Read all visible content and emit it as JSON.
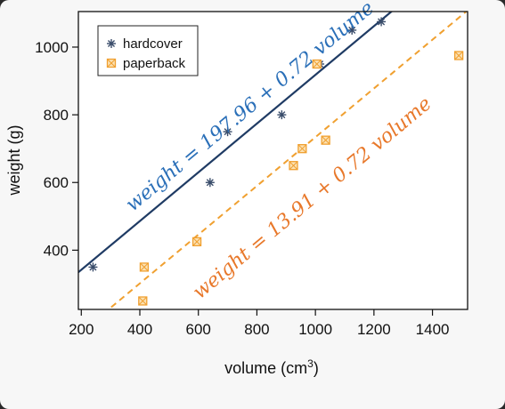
{
  "chart_data": {
    "type": "scatter",
    "xlabel_main": "volume (cm",
    "xlabel_sup": "3",
    "xlabel_end": ")",
    "ylabel": "weight (g)",
    "xlim": [
      190,
      1520
    ],
    "ylim": [
      225,
      1105
    ],
    "x_ticks": [
      200,
      400,
      600,
      800,
      1000,
      1200,
      1400
    ],
    "y_ticks": [
      400,
      600,
      800,
      1000
    ],
    "grid": false,
    "legend_position": "top-left",
    "series": [
      {
        "name": "hardcover",
        "marker": "asterisk",
        "color": "#3a4d6b",
        "points": [
          [
            240,
            350
          ],
          [
            640,
            600
          ],
          [
            700,
            750
          ],
          [
            885,
            800
          ],
          [
            1015,
            950
          ],
          [
            1125,
            1050
          ],
          [
            1225,
            1075
          ]
        ]
      },
      {
        "name": "paperback",
        "marker": "square-x",
        "color": "#f0a030",
        "points": [
          [
            410,
            250
          ],
          [
            415,
            350
          ],
          [
            595,
            425
          ],
          [
            925,
            650
          ],
          [
            955,
            700
          ],
          [
            1005,
            950
          ],
          [
            1035,
            725
          ],
          [
            1490,
            975
          ]
        ]
      }
    ],
    "fit_lines": [
      {
        "intercept": 197.96,
        "slope": 0.72,
        "color": "#1f3b64",
        "style": "solid",
        "label": "weight = 197.96 + 0.72 volume",
        "label_color": "#2a6fb8"
      },
      {
        "intercept": 13.91,
        "slope": 0.72,
        "color": "#f0a030",
        "style": "dashed",
        "label": "weight = 13.91 + 0.72 volume",
        "label_color": "#e8782a"
      }
    ]
  }
}
